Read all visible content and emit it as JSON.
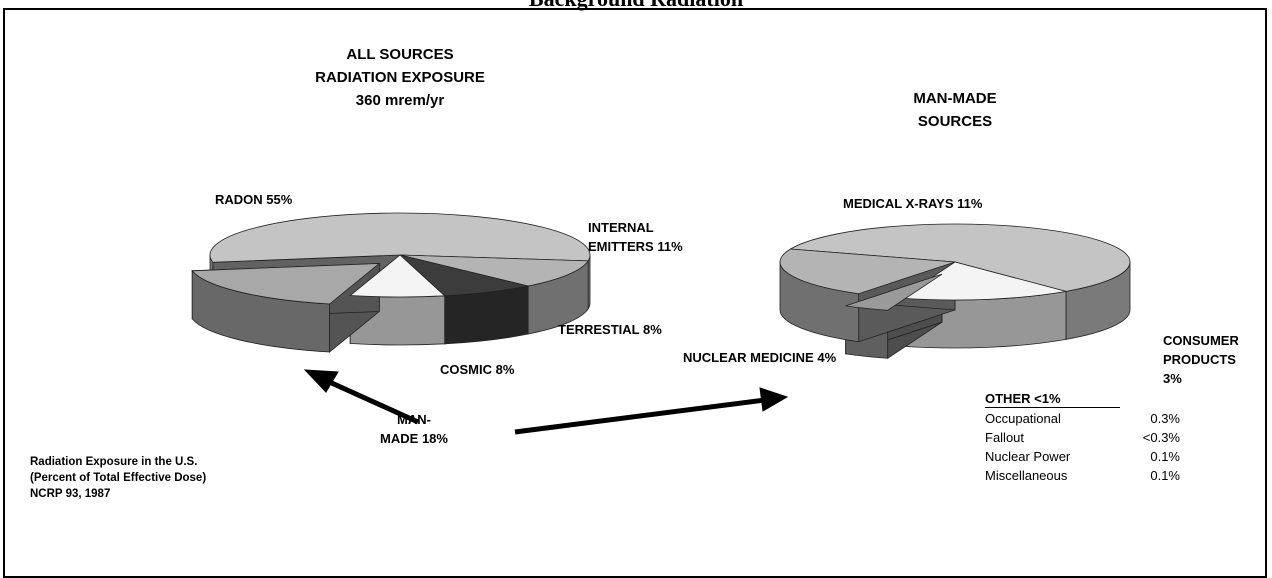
{
  "page_title": "Background Radiation",
  "chart_data": [
    {
      "type": "pie3d",
      "title_lines": [
        "ALL SOURCES",
        "RADIATION EXPOSURE",
        "360 mrem/yr"
      ],
      "categories": [
        "RADON",
        "INTERNAL EMITTERS",
        "TERRESTIAL",
        "COSMIC",
        "MAN-MADE"
      ],
      "values": [
        55,
        11,
        8,
        8,
        18
      ],
      "value_labels": [
        "55%",
        "11%",
        "8%",
        "8%",
        "18%"
      ],
      "colors": [
        "#c4c4c4",
        "#b4b4b4",
        "#3c3c3c",
        "#f4f4f4",
        "#a8a8a8"
      ],
      "exploded": [
        false,
        false,
        false,
        false,
        true
      ]
    },
    {
      "type": "pie3d",
      "title_lines": [
        "MAN-MADE",
        "SOURCES"
      ],
      "categories": [
        "MEDICAL X-RAYS",
        "CONSUMER PRODUCTS",
        "OTHER",
        "NUCLEAR MEDICINE"
      ],
      "values": [
        11,
        3,
        0.8,
        4
      ],
      "value_labels": [
        "11%",
        "3%",
        "<1%",
        "4%"
      ],
      "colors": [
        "#c4c4c4",
        "#f4f4f4",
        "#9a9a9a",
        "#b4b4b4"
      ],
      "exploded": [
        false,
        false,
        true,
        false
      ],
      "other_breakdown": [
        {
          "name": "Occupational",
          "value_label": "0.3%"
        },
        {
          "name": "Fallout",
          "value_label": "<0.3%"
        },
        {
          "name": "Nuclear Power",
          "value_label": "0.1%"
        },
        {
          "name": "Miscellaneous",
          "value_label": "0.1%"
        }
      ]
    }
  ],
  "note": [
    "Radiation Exposure in the U.S.",
    "(Percent of Total Effective Dose)",
    "NCRP 93,  1987"
  ]
}
